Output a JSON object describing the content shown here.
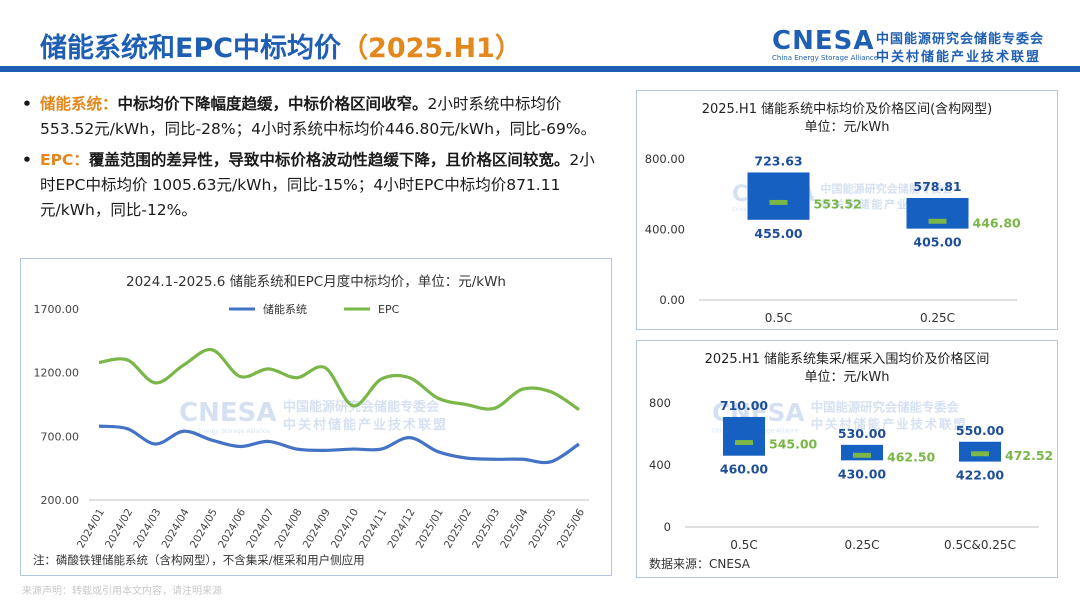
{
  "header": {
    "title_main": "储能系统和EPC中标均价",
    "title_paren": "（2025.H1）",
    "logo": {
      "main": "CNESA",
      "en": "China Energy Storage Alliance",
      "cn_line1": "中国能源研究会储能专委会",
      "cn_line2": "中关村储能产业技术联盟"
    }
  },
  "bullets": [
    {
      "dot": "•",
      "head": "储能系统：",
      "bold": "中标均价下降幅度趋缓，中标价格区间收窄。",
      "text": "2小时系统中标均价 553.52元/kWh，同比-28%；4小时系统中标均价446.80元/kWh，同比-69%。"
    },
    {
      "dot": "•",
      "head": "EPC：",
      "bold": "覆盖范围的差异性，导致中标价格波动性趋缓下降，且价格区间较宽。",
      "text": "2小时EPC中标均价 1005.63元/kWh，同比-15%；4小时EPC中标均价871.11元/kWh，同比-12%。"
    }
  ],
  "watermark": {
    "main": "CNESA",
    "cn_line1": "中国能源研究会储能专委会",
    "cn_line2": "中关村储能产业技术联盟",
    "en": "China Energy Storage Alliance"
  },
  "footer_note": "来源声明：转载或引用本文内容，请注明来源",
  "colors": {
    "blue": "#1f5fb3",
    "bar_blue": "#1560c0",
    "green": "#7ab648",
    "line_blue": "#4472c4",
    "orange": "#e2881c"
  },
  "chart_data": [
    {
      "type": "line",
      "title": "2024.1-2025.6 储能系统和EPC月度中标均价，单位：元/kWh",
      "note": "注：磷酸铁锂储能系统（含构网型），不含集采/框采和用户侧应用",
      "yticks": [
        "1700.00",
        "1200.00",
        "700.00",
        "200.00"
      ],
      "ylim": [
        200,
        1700
      ],
      "categories": [
        "2024/01",
        "2024/02",
        "2024/03",
        "2024/04",
        "2024/05",
        "2024/06",
        "2024/07",
        "2024/08",
        "2024/09",
        "2024/10",
        "2024/11",
        "2024/12",
        "2025/01",
        "2025/02",
        "2025/03",
        "2025/04",
        "2025/05",
        "2025/06"
      ],
      "series": [
        {
          "name": "储能系统",
          "color": "#4472c4",
          "values": [
            780,
            760,
            640,
            740,
            670,
            620,
            660,
            600,
            590,
            600,
            600,
            690,
            580,
            530,
            520,
            520,
            500,
            640
          ]
        },
        {
          "name": "EPC",
          "color": "#7ab648",
          "values": [
            1280,
            1300,
            1120,
            1260,
            1380,
            1170,
            1230,
            1160,
            1240,
            940,
            1150,
            1160,
            1000,
            950,
            920,
            1070,
            1050,
            910
          ]
        }
      ],
      "legend_position": "top-center",
      "grid": false
    },
    {
      "type": "range-bar",
      "title_line1": "2025.H1 储能系统中标均价及价格区间(含构网型)",
      "title_line2": "单位：元/kWh",
      "yticks": [
        "800.00",
        "400.00",
        "0.00"
      ],
      "ylim": [
        0,
        800
      ],
      "categories": [
        "0.5C",
        "0.25C"
      ],
      "max": [
        723.63,
        578.81
      ],
      "min": [
        455.0,
        405.0
      ],
      "avg": [
        553.52,
        446.8
      ],
      "max_labels": [
        "723.63",
        "578.81"
      ],
      "min_labels": [
        "455.00",
        "405.00"
      ],
      "avg_labels": [
        "553.52",
        "446.80"
      ]
    },
    {
      "type": "range-bar",
      "title_line1": "2025.H1 储能系统集采/框采入围均价及价格区间",
      "title_line2": "单位：元/kWh",
      "yticks": [
        "800",
        "400",
        "0"
      ],
      "ylim": [
        0,
        800
      ],
      "categories": [
        "0.5C",
        "0.25C",
        "0.5C&0.25C"
      ],
      "max": [
        710.0,
        530.0,
        550.0
      ],
      "min": [
        460.0,
        430.0,
        422.0
      ],
      "avg": [
        545.0,
        462.5,
        472.52
      ],
      "max_labels": [
        "710.00",
        "530.00",
        "550.00"
      ],
      "min_labels": [
        "460.00",
        "430.00",
        "422.00"
      ],
      "avg_labels": [
        "545.00",
        "462.50",
        "472.52"
      ],
      "source": "数据来源：CNESA"
    }
  ]
}
